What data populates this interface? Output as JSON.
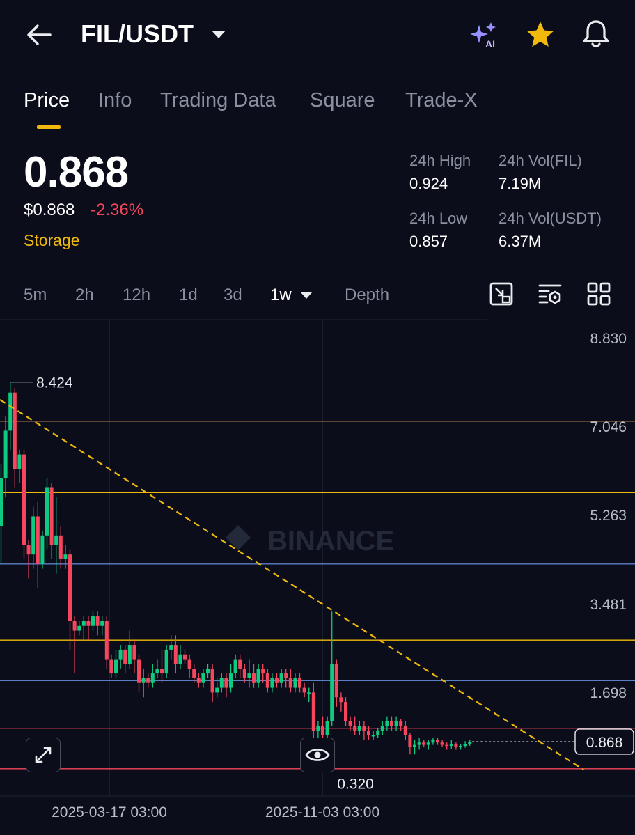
{
  "header": {
    "pair": "FIL/USDT",
    "icons": [
      "back-arrow-icon",
      "chevron-down-icon",
      "ai-sparkle-icon",
      "star-icon",
      "bell-icon"
    ],
    "ai_label": "AI"
  },
  "tabs": [
    {
      "label": "Price",
      "active": true
    },
    {
      "label": "Info",
      "active": false
    },
    {
      "label": "Trading Data",
      "active": false
    },
    {
      "label": "Square",
      "active": false
    },
    {
      "label": "Trade-X",
      "active": false
    }
  ],
  "ticker": {
    "last": "0.868",
    "last_usd": "$0.868",
    "change": "-2.36%",
    "tag": "Storage",
    "high_label": "24h High",
    "high": "0.924",
    "vol_fil_label": "24h Vol(FIL)",
    "vol_fil": "7.19M",
    "low_label": "24h Low",
    "low": "0.857",
    "vol_usdt_label": "24h Vol(USDT)",
    "vol_usdt": "6.37M"
  },
  "timeframes": [
    {
      "label": "5m",
      "active": false
    },
    {
      "label": "2h",
      "active": false
    },
    {
      "label": "12h",
      "active": false
    },
    {
      "label": "1d",
      "active": false
    },
    {
      "label": "3d",
      "active": false
    },
    {
      "label": "1w",
      "active": true
    },
    {
      "label": "Depth",
      "active": false
    }
  ],
  "colors": {
    "up": "#0ecb81",
    "down": "#f6465d",
    "accent": "#f0b90b",
    "bg": "#0b0e1a"
  },
  "chart_data": {
    "type": "candlestick",
    "y_ticks": [
      "8.830",
      "7.046",
      "5.263",
      "3.481",
      "1.698"
    ],
    "ylim": [
      -0.2,
      9.6
    ],
    "x_ticks": [
      "2025-03-17 03:00",
      "2025-11-03 03:00"
    ],
    "max_label": "8.424",
    "min_label": "0.320",
    "current_price_label": "0.868",
    "watermark": "BINANCE",
    "horizontal_lines": [
      {
        "y": 7.6,
        "color": "#e8a35a"
      },
      {
        "y": 6.1,
        "color": "#f0b90b"
      },
      {
        "y": 4.6,
        "color": "#5b7fc7"
      },
      {
        "y": 3.0,
        "color": "#f0b90b"
      },
      {
        "y": 2.15,
        "color": "#5b7fc7"
      },
      {
        "y": 1.15,
        "color": "#f6465d"
      },
      {
        "y": 0.3,
        "color": "#f6465d"
      }
    ],
    "trendline": {
      "from": [
        0,
        8.05
      ],
      "to": [
        127,
        0.28
      ]
    },
    "candles": [
      [
        5.4,
        6.4,
        4.6,
        6.7
      ],
      [
        6.4,
        7.4,
        6.0,
        7.7
      ],
      [
        7.4,
        8.2,
        7.0,
        8.42
      ],
      [
        8.2,
        6.6,
        6.2,
        8.3
      ],
      [
        6.6,
        6.9,
        6.3,
        7.0
      ],
      [
        6.9,
        5.0,
        4.7,
        7.0
      ],
      [
        5.0,
        4.8,
        4.3,
        5.1
      ],
      [
        4.8,
        5.6,
        4.5,
        5.8
      ],
      [
        5.6,
        4.6,
        4.1,
        5.9
      ],
      [
        4.6,
        5.2,
        4.5,
        5.3
      ],
      [
        5.2,
        6.2,
        4.9,
        6.4
      ],
      [
        6.2,
        5.0,
        4.7,
        6.3
      ],
      [
        5.0,
        5.2,
        4.4,
        6.0
      ],
      [
        5.2,
        4.7,
        4.5,
        5.4
      ],
      [
        4.7,
        4.8,
        4.5,
        5.0
      ],
      [
        4.8,
        3.4,
        2.8,
        4.9
      ],
      [
        3.4,
        3.2,
        2.3,
        3.5
      ],
      [
        3.2,
        3.3,
        3.1,
        3.4
      ],
      [
        3.3,
        3.4,
        3.0,
        3.5
      ],
      [
        3.4,
        3.3,
        3.0,
        3.5
      ],
      [
        3.3,
        3.5,
        3.2,
        3.6
      ],
      [
        3.5,
        3.3,
        3.1,
        3.6
      ],
      [
        3.3,
        3.4,
        3.1,
        3.5
      ],
      [
        3.4,
        2.6,
        2.4,
        3.5
      ],
      [
        2.6,
        2.3,
        2.2,
        2.7
      ],
      [
        2.3,
        2.6,
        2.2,
        2.8
      ],
      [
        2.6,
        2.8,
        2.4,
        2.9
      ],
      [
        2.8,
        2.5,
        2.3,
        2.9
      ],
      [
        2.5,
        2.9,
        2.4,
        3.2
      ],
      [
        2.9,
        2.6,
        2.3,
        3.0
      ],
      [
        2.6,
        2.1,
        1.9,
        2.7
      ],
      [
        2.1,
        2.2,
        1.8,
        2.4
      ],
      [
        2.2,
        2.1,
        2.0,
        2.3
      ],
      [
        2.1,
        2.3,
        2.0,
        2.5
      ],
      [
        2.3,
        2.4,
        2.2,
        2.6
      ],
      [
        2.4,
        2.3,
        2.1,
        2.8
      ],
      [
        2.3,
        2.8,
        2.2,
        2.9
      ],
      [
        2.8,
        2.9,
        2.6,
        3.1
      ],
      [
        2.9,
        2.5,
        2.3,
        3.1
      ],
      [
        2.5,
        2.7,
        2.4,
        2.9
      ],
      [
        2.7,
        2.6,
        2.5,
        2.8
      ],
      [
        2.6,
        2.4,
        2.2,
        2.7
      ],
      [
        2.4,
        2.2,
        2.1,
        2.5
      ],
      [
        2.2,
        2.1,
        2.0,
        2.3
      ],
      [
        2.1,
        2.3,
        2.0,
        2.4
      ],
      [
        2.3,
        2.4,
        2.2,
        2.5
      ],
      [
        2.4,
        1.9,
        1.7,
        2.5
      ],
      [
        1.9,
        2.0,
        1.8,
        2.2
      ],
      [
        2.0,
        2.2,
        1.9,
        2.3
      ],
      [
        2.2,
        2.0,
        1.8,
        2.3
      ],
      [
        2.0,
        2.3,
        1.9,
        2.5
      ],
      [
        2.3,
        2.6,
        2.2,
        2.7
      ],
      [
        2.6,
        2.4,
        2.2,
        2.7
      ],
      [
        2.4,
        2.2,
        2.1,
        2.5
      ],
      [
        2.2,
        2.3,
        2.0,
        2.6
      ],
      [
        2.3,
        2.1,
        2.0,
        2.5
      ],
      [
        2.1,
        2.4,
        2.0,
        2.5
      ],
      [
        2.4,
        2.3,
        2.1,
        2.5
      ],
      [
        2.3,
        2.0,
        1.9,
        2.4
      ],
      [
        2.0,
        2.2,
        1.9,
        2.3
      ],
      [
        2.2,
        2.1,
        2.0,
        2.3
      ],
      [
        2.1,
        2.3,
        2.0,
        2.4
      ],
      [
        2.3,
        2.2,
        2.0,
        2.4
      ],
      [
        2.2,
        2.0,
        1.9,
        2.4
      ],
      [
        2.0,
        2.2,
        1.9,
        2.3
      ],
      [
        2.2,
        2.0,
        1.9,
        2.3
      ],
      [
        2.0,
        1.9,
        1.8,
        2.1
      ],
      [
        1.9,
        1.9,
        1.7,
        2.0
      ],
      [
        1.9,
        1.1,
        0.32,
        2.1
      ],
      [
        1.1,
        1.2,
        0.9,
        1.3
      ],
      [
        1.2,
        1.0,
        0.9,
        1.4
      ],
      [
        1.0,
        1.3,
        0.9,
        1.4
      ],
      [
        1.3,
        2.5,
        1.2,
        3.6
      ],
      [
        2.5,
        1.8,
        1.6,
        2.6
      ],
      [
        1.8,
        1.7,
        1.5,
        1.9
      ],
      [
        1.7,
        1.3,
        1.2,
        1.8
      ],
      [
        1.3,
        1.2,
        1.1,
        1.4
      ],
      [
        1.2,
        1.1,
        1.0,
        1.4
      ],
      [
        1.1,
        1.2,
        1.0,
        1.3
      ],
      [
        1.2,
        1.1,
        0.9,
        1.3
      ],
      [
        1.1,
        1.0,
        0.9,
        1.2
      ],
      [
        1.0,
        1.0,
        0.9,
        1.1
      ],
      [
        1.0,
        1.1,
        0.95,
        1.15
      ],
      [
        1.1,
        1.2,
        1.0,
        1.3
      ],
      [
        1.2,
        1.3,
        1.1,
        1.4
      ],
      [
        1.3,
        1.2,
        1.1,
        1.4
      ],
      [
        1.2,
        1.3,
        1.1,
        1.4
      ],
      [
        1.3,
        1.2,
        1.1,
        1.35
      ],
      [
        1.2,
        1.0,
        0.9,
        1.3
      ],
      [
        1.0,
        0.75,
        0.6,
        1.05
      ],
      [
        0.75,
        0.8,
        0.6,
        0.9
      ],
      [
        0.8,
        0.85,
        0.7,
        0.95
      ],
      [
        0.85,
        0.8,
        0.75,
        0.9
      ],
      [
        0.8,
        0.85,
        0.7,
        0.9
      ],
      [
        0.85,
        0.9,
        0.8,
        0.95
      ],
      [
        0.9,
        0.85,
        0.8,
        0.95
      ],
      [
        0.85,
        0.8,
        0.75,
        0.9
      ],
      [
        0.8,
        0.78,
        0.7,
        0.85
      ],
      [
        0.78,
        0.82,
        0.72,
        0.9
      ],
      [
        0.82,
        0.75,
        0.7,
        0.85
      ],
      [
        0.75,
        0.78,
        0.7,
        0.82
      ],
      [
        0.78,
        0.82,
        0.74,
        0.88
      ],
      [
        0.82,
        0.868,
        0.78,
        0.9
      ]
    ]
  }
}
